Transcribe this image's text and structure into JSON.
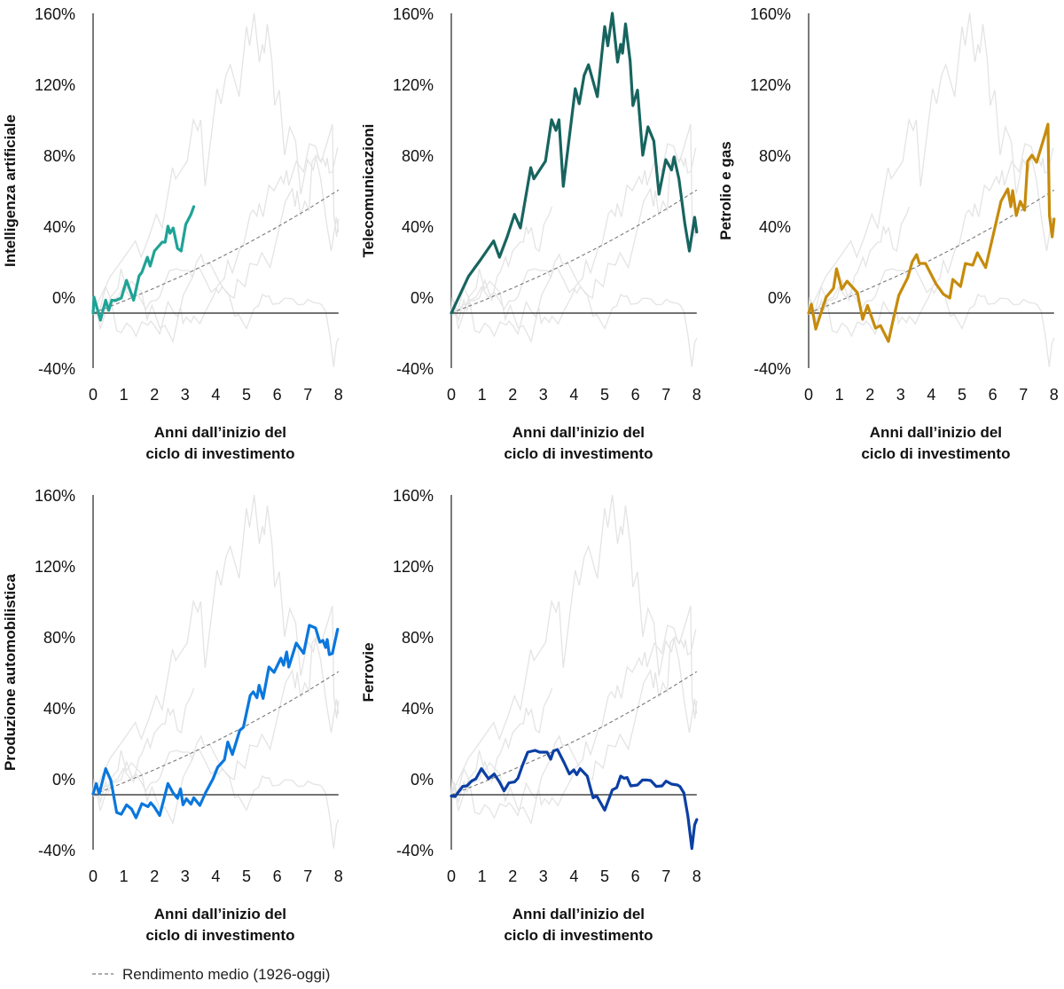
{
  "chart_data": {
    "type": "line",
    "layout": "small-multiples 3x2 (5 panels)",
    "x_axis": {
      "label_line1": "Anni dall’inizio del",
      "label_line2": "ciclo di investimento",
      "range": [
        0,
        8
      ],
      "ticks": [
        "0",
        "1",
        "2",
        "3",
        "4",
        "5",
        "6",
        "7",
        "8"
      ]
    },
    "y_axis": {
      "range": [
        -40,
        160
      ],
      "ticks": [
        "160%",
        "120%",
        "80%",
        "40%",
        "0%",
        "-40%"
      ],
      "tick_values": [
        160,
        120,
        80,
        40,
        0,
        -40
      ]
    },
    "reference_line_y": -9,
    "grid": false,
    "context_series_color": "#e4e4e4",
    "average": {
      "name": "Rendimento medio (1926-oggi)",
      "style": "dashed",
      "color": "#777777",
      "x": [
        0,
        1,
        2,
        3,
        4,
        5,
        6,
        7,
        8
      ],
      "y": [
        -9,
        -2.2,
        5.1,
        12.8,
        21.1,
        30.0,
        39.5,
        49.6,
        60.4
      ]
    },
    "panels": [
      {
        "name": "Intelligenza artificiale",
        "color": "#1fa396",
        "x": [
          0,
          0.03,
          0.24,
          0.41,
          0.51,
          0.61,
          0.72,
          0.92,
          1.09,
          1.32,
          1.5,
          1.59,
          1.77,
          1.86,
          2.0,
          2.25,
          2.35,
          2.44,
          2.51,
          2.61,
          2.75,
          2.87,
          3.02,
          3.19,
          3.28
        ],
        "y": [
          -9,
          0,
          -13,
          -1.7,
          -7.5,
          -1.7,
          -2,
          -0.5,
          9.5,
          -1.7,
          12,
          14,
          22.5,
          17.5,
          26,
          31,
          31,
          40,
          36,
          39,
          27.5,
          26,
          41,
          46.7,
          51
        ]
      },
      {
        "name": "Telecomunicazioni",
        "color": "#17645f",
        "x": [
          0,
          0.56,
          0.95,
          1.38,
          1.57,
          1.82,
          2.06,
          2.25,
          2.59,
          2.69,
          3.07,
          3.27,
          3.41,
          3.51,
          3.65,
          4.04,
          4.17,
          4.33,
          4.47,
          4.76,
          5.0,
          5.1,
          5.25,
          5.42,
          5.52,
          5.58,
          5.68,
          5.83,
          5.92,
          6.07,
          6.24,
          6.41,
          6.6,
          6.77,
          6.99,
          7.18,
          7.26,
          7.42,
          7.61,
          7.76,
          7.93,
          8.0
        ],
        "y": [
          -9,
          11.7,
          21,
          31.7,
          22.5,
          34,
          46.7,
          39,
          73,
          66.7,
          76.7,
          100,
          94,
          100,
          62.5,
          117.5,
          109,
          125,
          131,
          113,
          152.5,
          141.7,
          160,
          132.5,
          142.5,
          137.5,
          154,
          133,
          108,
          116.7,
          80,
          96,
          88,
          58,
          77.5,
          71.7,
          79,
          66.7,
          41.7,
          26,
          45,
          36.7
        ]
      },
      {
        "name": "Petrolio e gas",
        "color": "#c68b0c",
        "x": [
          0,
          0.09,
          0.23,
          0.57,
          0.81,
          0.91,
          1.08,
          1.25,
          1.59,
          1.76,
          1.92,
          2.18,
          2.34,
          2.6,
          2.74,
          2.94,
          3.23,
          3.38,
          3.52,
          3.61,
          3.81,
          4.15,
          4.39,
          4.6,
          4.7,
          4.95,
          5.11,
          5.35,
          5.5,
          5.77,
          6.03,
          6.27,
          6.49,
          6.59,
          6.65,
          6.77,
          6.9,
          7.04,
          7.14,
          7.28,
          7.43,
          7.72,
          7.8,
          7.85,
          7.94,
          8.0
        ],
        "y": [
          -9,
          -4,
          -18,
          0,
          5,
          16,
          4.5,
          9,
          2.5,
          -12.5,
          -4.7,
          -17.5,
          -16,
          -25,
          -14,
          1,
          11,
          20,
          24,
          19,
          19,
          7.5,
          1.7,
          -0.5,
          10,
          6,
          19,
          18,
          25,
          16.7,
          36,
          54,
          61,
          51,
          60,
          46,
          54,
          49,
          76.7,
          80,
          76,
          92.5,
          97.5,
          46,
          34,
          44
        ]
      },
      {
        "name": "Produzione automobilistica",
        "color": "#0a77dd",
        "x": [
          0,
          0.1,
          0.2,
          0.41,
          0.58,
          0.77,
          0.92,
          1.09,
          1.25,
          1.4,
          1.59,
          1.79,
          1.88,
          2.0,
          2.17,
          2.44,
          2.61,
          2.75,
          2.85,
          2.93,
          3.04,
          3.19,
          3.28,
          3.48,
          3.67,
          3.91,
          4.06,
          4.28,
          4.39,
          4.54,
          4.78,
          4.9,
          5.12,
          5.22,
          5.34,
          5.41,
          5.54,
          5.73,
          5.9,
          6.12,
          6.21,
          6.31,
          6.38,
          6.62,
          6.86,
          7.05,
          7.25,
          7.39,
          7.49,
          7.58,
          7.63,
          7.7,
          7.8,
          7.97
        ],
        "y": [
          -8.5,
          -2.7,
          -8.5,
          5.7,
          -1,
          -19,
          -20,
          -14.7,
          -17,
          -22,
          -14,
          -15.7,
          -13.5,
          -16,
          -20.7,
          -2.7,
          -8,
          -11,
          -5.7,
          -14.7,
          -11.3,
          -14.3,
          -10.7,
          -15,
          -7.7,
          0,
          6.5,
          10.7,
          20.7,
          13.7,
          27.3,
          29,
          47,
          49,
          45.7,
          52.7,
          45.3,
          63,
          60,
          68,
          64,
          71.5,
          63,
          76.5,
          70.7,
          86.5,
          85,
          77,
          78,
          74,
          78.5,
          70,
          70.7,
          84.3
        ]
      },
      {
        "name": "Ferrovie",
        "color": "#0b3fa4",
        "x": [
          0,
          0.12,
          0.37,
          0.51,
          0.66,
          0.8,
          0.98,
          1.21,
          1.4,
          1.57,
          1.72,
          1.88,
          2.06,
          2.17,
          2.33,
          2.49,
          2.73,
          2.88,
          3.12,
          3.24,
          3.33,
          3.46,
          3.68,
          3.85,
          3.99,
          4.09,
          4.2,
          4.43,
          4.52,
          4.62,
          4.74,
          5.0,
          5.25,
          5.39,
          5.52,
          5.63,
          5.73,
          5.85,
          6.07,
          6.23,
          6.39,
          6.5,
          6.68,
          6.87,
          7.0,
          7.18,
          7.37,
          7.45,
          7.58,
          7.71,
          7.84,
          7.93,
          8.0
        ],
        "y": [
          -9.7,
          -10,
          -4.3,
          -4,
          -1.3,
          0,
          5.7,
          0,
          2.7,
          -1.8,
          -6.8,
          -2.3,
          -1.8,
          0.3,
          8,
          15,
          16,
          15,
          15,
          11,
          15.7,
          16.5,
          9,
          2.7,
          5,
          2.3,
          5.7,
          1.5,
          -4.3,
          -10.7,
          -9.7,
          -17.7,
          -6.3,
          -5,
          1.5,
          0.3,
          0.7,
          -4,
          -3.5,
          -0.7,
          -0.7,
          -1,
          -4.3,
          -4,
          -1.3,
          -3,
          -3.5,
          -4.3,
          -8,
          -21,
          -39.3,
          -26,
          -23
        ]
      }
    ]
  }
}
